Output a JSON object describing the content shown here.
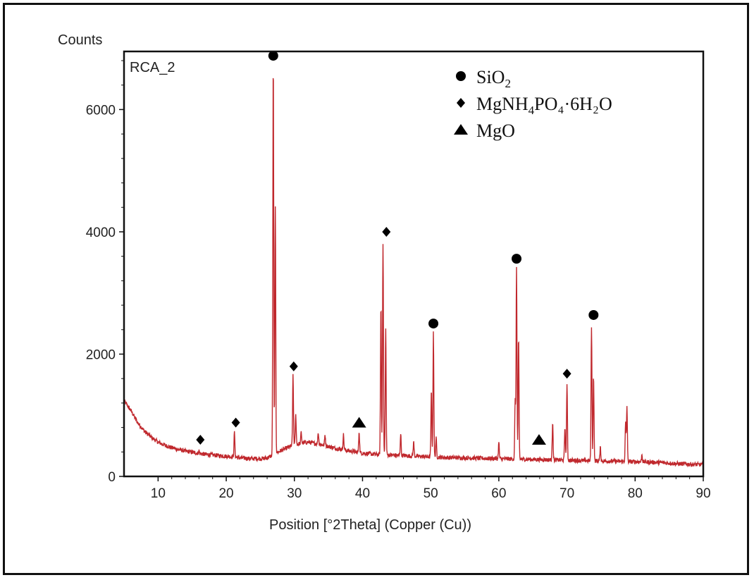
{
  "chart_data": {
    "type": "line",
    "sample_label": "RCA_2",
    "ylabel": "Counts",
    "xlabel": "Position [°2Theta] (Copper (Cu))",
    "xlim": [
      5,
      90
    ],
    "ylim": [
      0,
      6950
    ],
    "xticks": [
      10,
      20,
      30,
      40,
      50,
      60,
      70,
      80,
      90
    ],
    "yticks": [
      0,
      2000,
      4000,
      6000
    ],
    "series_color": "#c0282d",
    "background_curve": {
      "x": [
        5,
        6,
        7,
        8,
        9,
        10,
        11,
        12,
        13,
        14,
        15,
        16,
        17,
        18,
        19,
        20,
        21,
        22,
        23,
        24,
        25,
        26,
        28,
        30,
        32,
        34,
        36,
        38,
        40,
        42,
        44,
        46,
        48,
        50,
        52,
        54,
        56,
        58,
        60,
        62,
        64,
        66,
        68,
        70,
        72,
        74,
        76,
        78,
        80,
        82,
        84,
        86,
        88,
        90
      ],
      "y": [
        1240,
        1080,
        880,
        740,
        640,
        560,
        510,
        470,
        440,
        415,
        395,
        375,
        360,
        350,
        340,
        330,
        320,
        305,
        295,
        290,
        290,
        300,
        420,
        520,
        560,
        520,
        460,
        420,
        380,
        360,
        350,
        340,
        330,
        320,
        310,
        305,
        300,
        295,
        290,
        285,
        280,
        275,
        270,
        265,
        260,
        255,
        250,
        245,
        240,
        235,
        225,
        210,
        200,
        190
      ]
    },
    "peaks": [
      {
        "x": 16.0,
        "y": 420
      },
      {
        "x": 21.2,
        "y": 720
      },
      {
        "x": 26.9,
        "y": 6800
      },
      {
        "x": 27.2,
        "y": 4380
      },
      {
        "x": 29.8,
        "y": 1640
      },
      {
        "x": 30.2,
        "y": 1000
      },
      {
        "x": 31.0,
        "y": 720
      },
      {
        "x": 33.5,
        "y": 720
      },
      {
        "x": 34.5,
        "y": 680
      },
      {
        "x": 37.2,
        "y": 680
      },
      {
        "x": 39.5,
        "y": 740
      },
      {
        "x": 42.7,
        "y": 2800
      },
      {
        "x": 43.0,
        "y": 3820
      },
      {
        "x": 43.4,
        "y": 2450
      },
      {
        "x": 45.6,
        "y": 700
      },
      {
        "x": 47.5,
        "y": 560
      },
      {
        "x": 50.1,
        "y": 1400
      },
      {
        "x": 50.4,
        "y": 2370
      },
      {
        "x": 50.8,
        "y": 620
      },
      {
        "x": 60.0,
        "y": 550
      },
      {
        "x": 62.4,
        "y": 1240
      },
      {
        "x": 62.6,
        "y": 3420
      },
      {
        "x": 62.9,
        "y": 2250
      },
      {
        "x": 67.9,
        "y": 900
      },
      {
        "x": 69.7,
        "y": 800
      },
      {
        "x": 70.0,
        "y": 1500
      },
      {
        "x": 73.6,
        "y": 2470
      },
      {
        "x": 73.9,
        "y": 1650
      },
      {
        "x": 74.9,
        "y": 470
      },
      {
        "x": 78.6,
        "y": 880
      },
      {
        "x": 78.8,
        "y": 1140
      },
      {
        "x": 81.0,
        "y": 360
      }
    ],
    "markers": [
      {
        "phase": "SiO2",
        "shape": "circle",
        "x": 26.9,
        "y": 6880
      },
      {
        "phase": "SiO2",
        "shape": "circle",
        "x": 50.4,
        "y": 2500
      },
      {
        "phase": "SiO2",
        "shape": "circle",
        "x": 62.6,
        "y": 3560
      },
      {
        "phase": "SiO2",
        "shape": "circle",
        "x": 73.9,
        "y": 2640
      },
      {
        "phase": "MgNH4PO4·6H2O",
        "shape": "diamond",
        "x": 16.2,
        "y": 600
      },
      {
        "phase": "MgNH4PO4·6H2O",
        "shape": "diamond",
        "x": 21.4,
        "y": 880
      },
      {
        "phase": "MgNH4PO4·6H2O",
        "shape": "diamond",
        "x": 29.9,
        "y": 1800
      },
      {
        "phase": "MgNH4PO4·6H2O",
        "shape": "diamond",
        "x": 43.5,
        "y": 4000
      },
      {
        "phase": "MgNH4PO4·6H2O",
        "shape": "diamond",
        "x": 70.0,
        "y": 1680
      },
      {
        "phase": "MgO",
        "shape": "triangle",
        "x": 39.5,
        "y": 880
      },
      {
        "phase": "MgO",
        "shape": "triangle",
        "x": 65.9,
        "y": 600
      }
    ],
    "legend": {
      "placement": "top-right",
      "items": [
        {
          "shape": "circle",
          "main": "SiO",
          "sub": "2",
          "rest": ""
        },
        {
          "shape": "diamond",
          "main": "MgNH",
          "sub": "4",
          "rest": "PO₄·6H₂O"
        },
        {
          "shape": "triangle",
          "main": "MgO",
          "sub": "",
          "rest": ""
        }
      ]
    }
  }
}
